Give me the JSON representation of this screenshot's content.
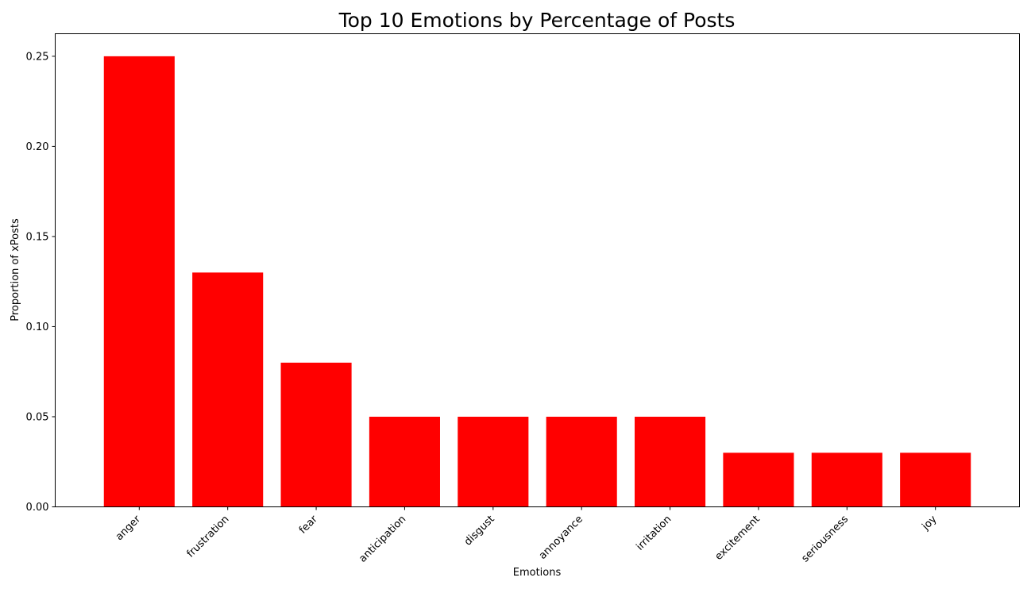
{
  "chart_data": {
    "type": "bar",
    "title": "Top 10 Emotions by Percentage of Posts",
    "xlabel": "Emotions",
    "ylabel": "Proportion of xPosts",
    "categories": [
      "anger",
      "frustration",
      "fear",
      "anticipation",
      "disgust",
      "annoyance",
      "irritation",
      "excitement",
      "seriousness",
      "joy"
    ],
    "values": [
      0.25,
      0.13,
      0.08,
      0.05,
      0.05,
      0.05,
      0.05,
      0.03,
      0.03,
      0.03
    ],
    "ylim": [
      0,
      0.2625
    ],
    "yticks": [
      "0.00",
      "0.05",
      "0.10",
      "0.15",
      "0.20",
      "0.25"
    ],
    "bar_color": "#ff0000",
    "grid": false,
    "x_tick_rotation_deg": 45
  }
}
